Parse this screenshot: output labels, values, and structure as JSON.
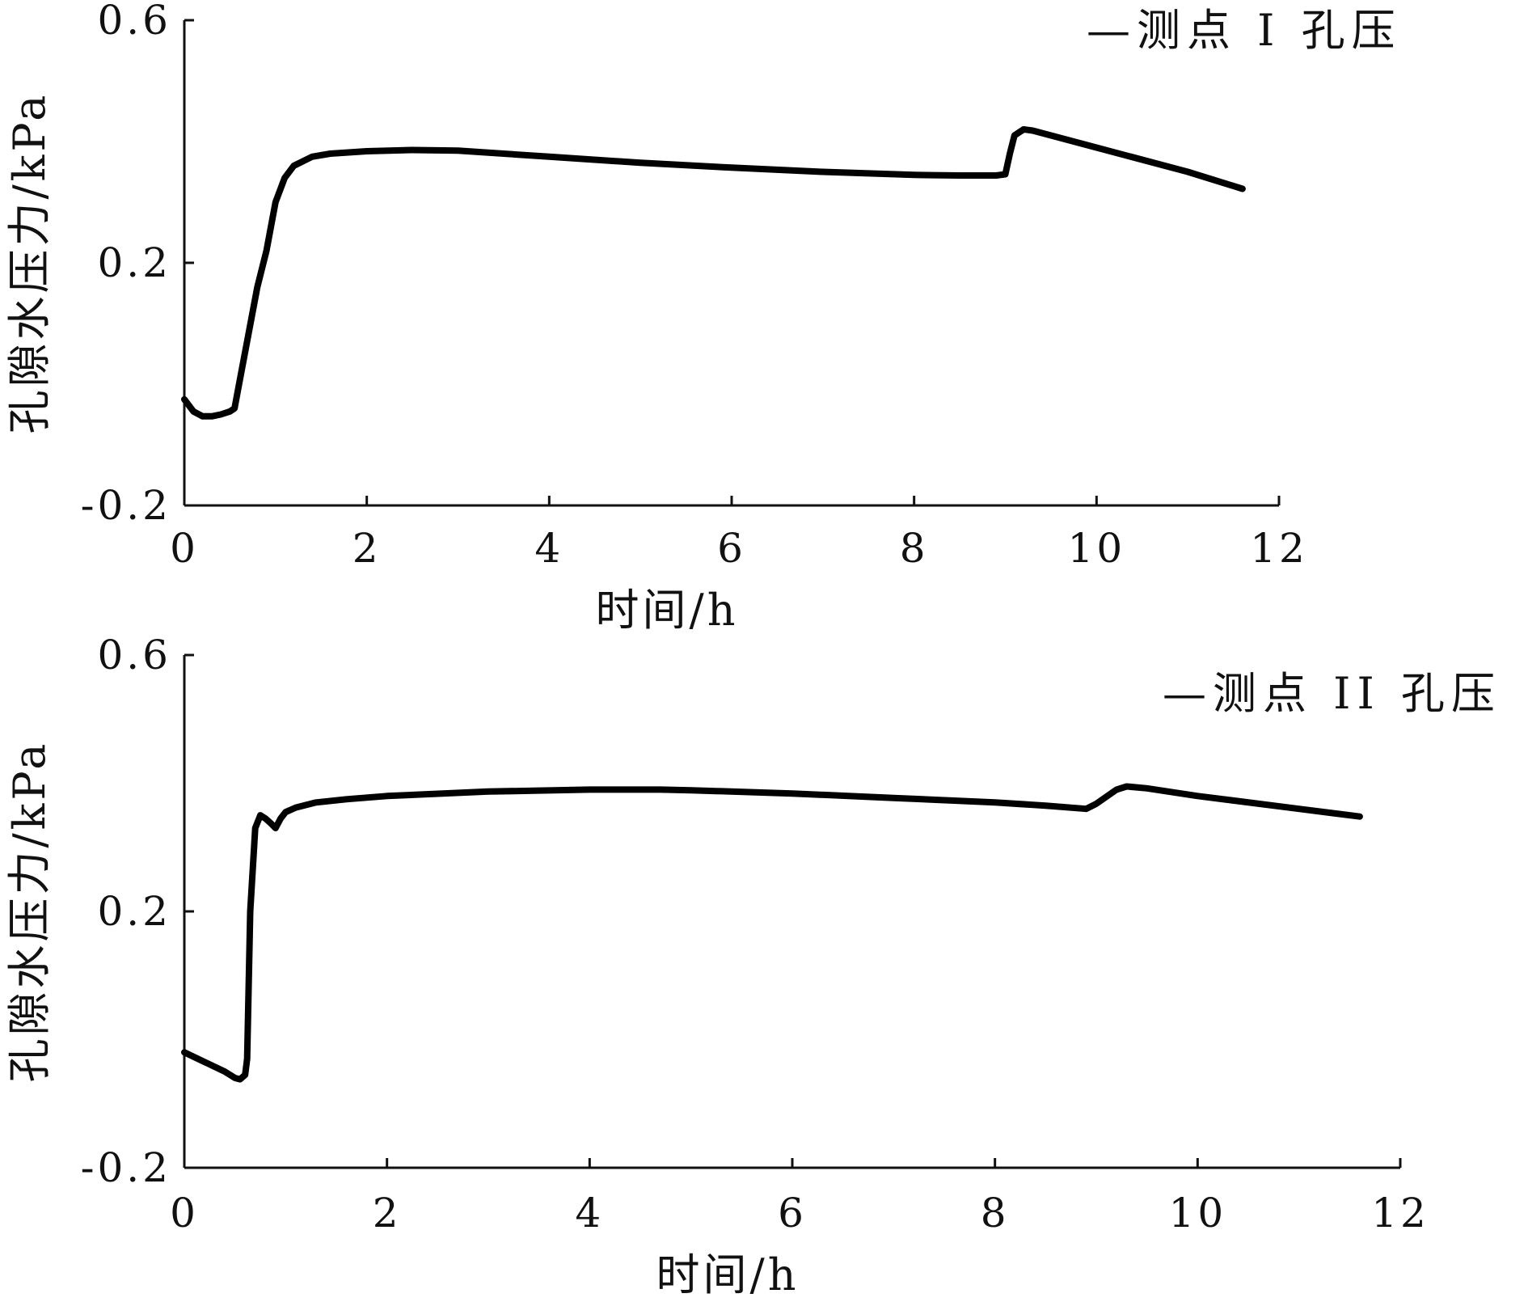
{
  "chart_data": [
    {
      "type": "line",
      "xlabel": "时间/h",
      "ylabel": "孔隙水压力/kPa",
      "xlim": [
        0,
        12
      ],
      "ylim": [
        -0.2,
        0.6
      ],
      "xticks": [
        "0",
        "2",
        "4",
        "6",
        "8",
        "10",
        "12"
      ],
      "yticks": [
        "-0.2",
        "0.2",
        "0.6"
      ],
      "grid": false,
      "legend_position": "top-right",
      "series": [
        {
          "name": "—测点 I 孔压",
          "color": "#000000",
          "x": [
            0,
            0.1,
            0.2,
            0.3,
            0.4,
            0.5,
            0.55,
            0.6,
            0.7,
            0.8,
            0.9,
            1.0,
            1.1,
            1.2,
            1.4,
            1.6,
            2.0,
            2.5,
            3.0,
            4.0,
            5.0,
            6.0,
            7.0,
            8.0,
            8.5,
            8.9,
            9.0,
            9.05,
            9.1,
            9.2,
            9.3,
            10.0,
            11.0,
            11.6
          ],
          "y": [
            -0.025,
            -0.045,
            -0.053,
            -0.053,
            -0.05,
            -0.045,
            -0.04,
            0.0,
            0.08,
            0.16,
            0.22,
            0.3,
            0.34,
            0.36,
            0.375,
            0.38,
            0.384,
            0.386,
            0.385,
            0.375,
            0.365,
            0.357,
            0.35,
            0.345,
            0.344,
            0.344,
            0.346,
            0.38,
            0.41,
            0.42,
            0.418,
            0.39,
            0.35,
            0.322
          ]
        }
      ]
    },
    {
      "type": "line",
      "xlabel": "时间/h",
      "ylabel": "孔隙水压力/kPa",
      "xlim": [
        0,
        12
      ],
      "ylim": [
        -0.2,
        0.6
      ],
      "xticks": [
        "0",
        "2",
        "4",
        "6",
        "8",
        "10",
        "12"
      ],
      "yticks": [
        "-0.2",
        "0.2",
        "0.6"
      ],
      "grid": false,
      "legend_position": "top-right",
      "series": [
        {
          "name": "—测点 II 孔压",
          "color": "#000000",
          "x": [
            0,
            0.2,
            0.4,
            0.5,
            0.55,
            0.6,
            0.62,
            0.65,
            0.7,
            0.75,
            0.8,
            0.85,
            0.9,
            0.95,
            1.0,
            1.1,
            1.3,
            1.6,
            2.0,
            3.0,
            4.0,
            4.7,
            5.0,
            6.0,
            7.0,
            8.0,
            8.5,
            8.9,
            9.0,
            9.2,
            9.3,
            9.5,
            10.0,
            11.0,
            11.6
          ],
          "y": [
            -0.02,
            -0.035,
            -0.05,
            -0.06,
            -0.062,
            -0.055,
            -0.03,
            0.2,
            0.33,
            0.35,
            0.345,
            0.338,
            0.33,
            0.345,
            0.355,
            0.362,
            0.37,
            0.375,
            0.38,
            0.387,
            0.39,
            0.39,
            0.389,
            0.384,
            0.377,
            0.37,
            0.365,
            0.36,
            0.368,
            0.39,
            0.395,
            0.392,
            0.38,
            0.36,
            0.348
          ]
        }
      ]
    }
  ]
}
